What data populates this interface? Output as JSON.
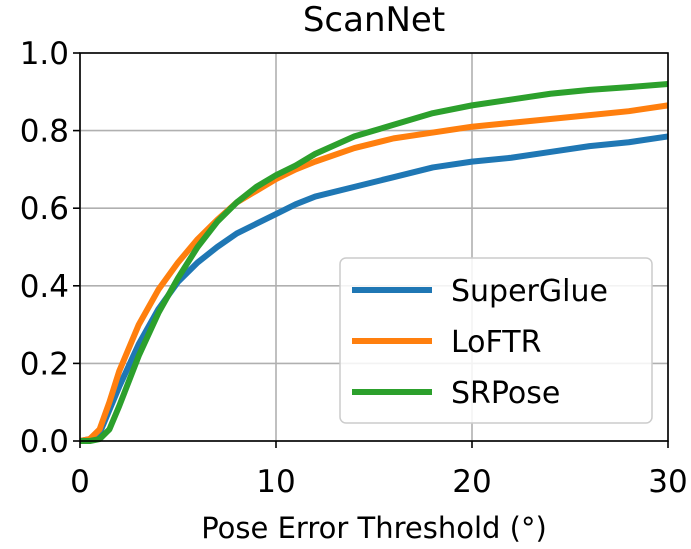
{
  "chart_data": {
    "type": "line",
    "title": "ScanNet",
    "xlabel": "Pose Error Threshold (°)",
    "ylabel": "",
    "xlim": [
      0,
      30
    ],
    "ylim": [
      0,
      1.0
    ],
    "xticks": [
      0,
      10,
      20,
      30
    ],
    "xtick_labels": [
      "0",
      "10",
      "20",
      "30"
    ],
    "yticks": [
      0.0,
      0.2,
      0.4,
      0.6,
      0.8,
      1.0
    ],
    "ytick_labels": [
      "0.0",
      "0.2",
      "0.4",
      "0.6",
      "0.8",
      "1.0"
    ],
    "grid": true,
    "legend_position": "bottom-right",
    "series": [
      {
        "name": "SuperGlue",
        "color": "#1f77b4",
        "x": [
          0,
          0.5,
          1,
          1.5,
          2,
          3,
          4,
          5,
          6,
          7,
          8,
          9,
          10,
          11,
          12,
          14,
          16,
          18,
          20,
          22,
          24,
          26,
          28,
          30
        ],
        "y": [
          0,
          0.005,
          0.02,
          0.08,
          0.14,
          0.25,
          0.34,
          0.41,
          0.46,
          0.5,
          0.535,
          0.56,
          0.585,
          0.61,
          0.63,
          0.655,
          0.68,
          0.705,
          0.72,
          0.73,
          0.745,
          0.76,
          0.77,
          0.785
        ]
      },
      {
        "name": "LoFTR",
        "color": "#ff7f0e",
        "x": [
          0,
          0.5,
          1,
          1.5,
          2,
          3,
          4,
          5,
          6,
          7,
          8,
          9,
          10,
          11,
          12,
          14,
          16,
          18,
          20,
          22,
          24,
          26,
          28,
          30
        ],
        "y": [
          0,
          0.005,
          0.03,
          0.1,
          0.18,
          0.3,
          0.39,
          0.46,
          0.52,
          0.57,
          0.615,
          0.645,
          0.675,
          0.7,
          0.72,
          0.755,
          0.78,
          0.795,
          0.81,
          0.82,
          0.83,
          0.84,
          0.85,
          0.865
        ]
      },
      {
        "name": "SRPose",
        "color": "#2ca02c",
        "x": [
          0,
          0.5,
          1,
          1.5,
          2,
          3,
          4,
          5,
          6,
          7,
          8,
          9,
          10,
          11,
          12,
          14,
          16,
          18,
          20,
          22,
          24,
          26,
          28,
          30
        ],
        "y": [
          0,
          0,
          0.005,
          0.03,
          0.09,
          0.22,
          0.33,
          0.42,
          0.5,
          0.565,
          0.615,
          0.655,
          0.685,
          0.71,
          0.74,
          0.785,
          0.815,
          0.845,
          0.865,
          0.88,
          0.895,
          0.905,
          0.912,
          0.92
        ]
      }
    ]
  }
}
